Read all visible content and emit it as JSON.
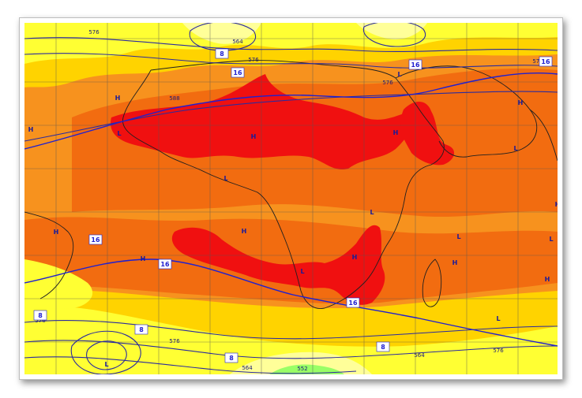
{
  "colors": {
    "warm": "#f7921e",
    "hot": "#f26c10",
    "very_hot": "#f01010",
    "mild": "#ffd300",
    "cool": "#ffff33",
    "cooler": "#ffff99",
    "coolest": "#99ff66",
    "contour": "#2b2b9e",
    "isotherm": "#2020d0",
    "coast": "#202020",
    "grid": "#555555"
  },
  "markers": {
    "high": "H",
    "low": "L"
  },
  "contour_labels": [
    "576",
    "564",
    "576",
    "588",
    "576",
    "576",
    "576",
    "576",
    "564",
    "552",
    "564",
    "576"
  ],
  "isotherm_labels": [
    "8",
    "16",
    "16",
    "16",
    "16",
    "16",
    "16",
    "8",
    "8",
    "8",
    "8"
  ]
}
